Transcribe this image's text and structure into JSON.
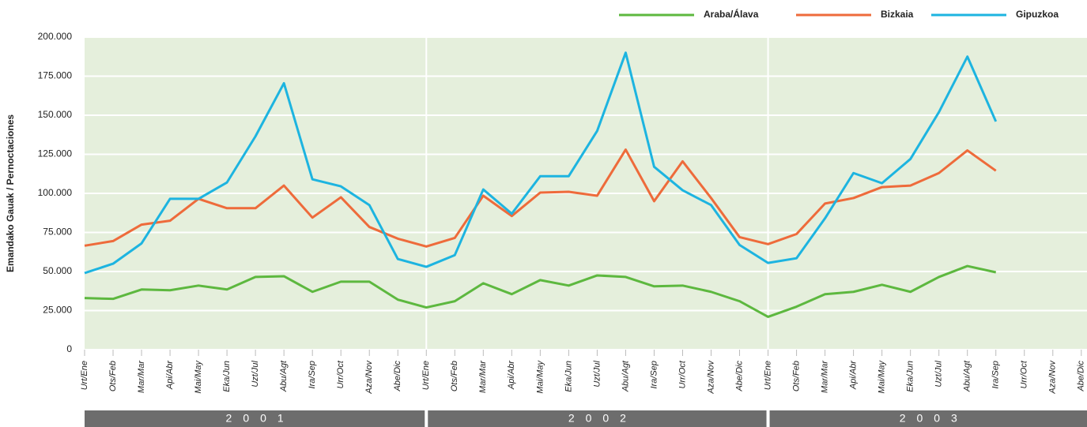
{
  "chart_data": {
    "type": "line",
    "y_label": "Emandako Gauak / Pernoctaciones",
    "categories": [
      "Urt/Ene",
      "Ots/Feb",
      "Mar/Mar",
      "Api/Abr",
      "Mai/May",
      "Eka/Jun",
      "Uzt/Jul",
      "Abu/Agt",
      "Ira/Sep",
      "Urr/Oct",
      "Aza/Nov",
      "Abe/Dic",
      "Urt/Ene",
      "Ots/Feb",
      "Mar/Mar",
      "Api/Abr",
      "Mai/May",
      "Eka/Jun",
      "Uzt/Jul",
      "Abu/Agt",
      "Ira/Sep",
      "Urr/Oct",
      "Aza/Nov",
      "Abe/Dic",
      "Urt/Ene",
      "Ots/Feb",
      "Mar/Mar",
      "Api/Abr",
      "Mai/May",
      "Eka/Jun",
      "Uzt/Jul",
      "Abu/Agt",
      "Ira/Sep",
      "Urr/Oct",
      "Aza/Nov",
      "Abe/Dic"
    ],
    "years": [
      "2001",
      "2002",
      "2003"
    ],
    "series": [
      {
        "name": "Araba/Álava",
        "color": "#5db83f",
        "values": [
          33000,
          32500,
          38500,
          38000,
          41000,
          38500,
          46500,
          47000,
          37000,
          43500,
          43500,
          32000,
          27000,
          31000,
          42500,
          35500,
          44500,
          41000,
          47500,
          46500,
          40500,
          41000,
          37000,
          31000,
          21000,
          27500,
          35500,
          37000,
          41500,
          37000,
          46500,
          53500,
          49500,
          null,
          null,
          null
        ]
      },
      {
        "name": "Bizkaia",
        "color": "#ee6b3b",
        "values": [
          66500,
          69500,
          80000,
          82500,
          96500,
          90500,
          90500,
          105000,
          84500,
          97500,
          78500,
          71000,
          66000,
          71500,
          98500,
          85500,
          100500,
          101000,
          98500,
          128000,
          95000,
          120500,
          97000,
          72000,
          67500,
          74000,
          93500,
          97000,
          104000,
          105000,
          113000,
          127500,
          114500,
          null,
          null,
          null
        ]
      },
      {
        "name": "Gipuzkoa",
        "color": "#1db4e0",
        "values": [
          49000,
          55000,
          68000,
          96500,
          96500,
          107000,
          136500,
          170500,
          109000,
          104500,
          92500,
          58000,
          53000,
          60500,
          102500,
          87000,
          111000,
          111000,
          140000,
          190000,
          117000,
          102000,
          92500,
          67000,
          55500,
          58500,
          84000,
          113000,
          106500,
          122000,
          152000,
          187500,
          146000,
          null,
          null,
          null
        ]
      }
    ],
    "ylim": [
      0,
      200000
    ],
    "yticks": [
      0,
      {
        "value": 25000,
        "label": "25.000"
      },
      {
        "value": 50000,
        "label": "50.000"
      },
      {
        "value": 75000,
        "label": "75.000"
      },
      {
        "value": 100000,
        "label": "100.000"
      },
      {
        "value": 125000,
        "label": "125.000"
      },
      {
        "value": 150000,
        "label": "150.000"
      },
      {
        "value": 175000,
        "label": "175.000"
      },
      {
        "value": 200000,
        "label": "200.000"
      }
    ],
    "grid": true,
    "legend": "top-right",
    "background": "#e5efdc"
  }
}
